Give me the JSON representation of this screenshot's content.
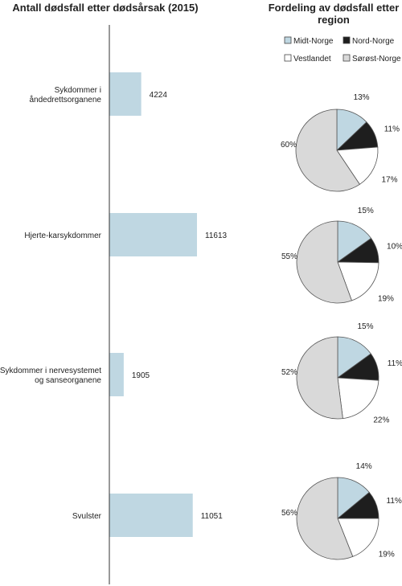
{
  "chart_data": [
    {
      "type": "bar",
      "orientation": "horizontal",
      "title": "Antall dødsfall etter dødsårsak (2015)",
      "categories": [
        [
          "Sykdommer i",
          "åndedrettsorganene"
        ],
        [
          "Hjerte-karsykdommer"
        ],
        [
          "Sykdommer i nervesystemet",
          "og sanseorganene"
        ],
        [
          "Svulster"
        ]
      ],
      "values": [
        4224,
        11613,
        1905,
        11051
      ],
      "value_labels": [
        "4224",
        "11613",
        "1905",
        "11051"
      ],
      "xlim": [
        0,
        12000
      ],
      "bar_color": "#bfd7e2",
      "grid": false
    },
    {
      "type": "pie",
      "title": "Fordeling av dødsfall etter region",
      "legend": {
        "placement": "top",
        "entries": [
          "Midt-Norge",
          "Nord-Norge",
          "Vestlandet",
          "Sørøst-Norge"
        ]
      },
      "colors": [
        "#bfd7e2",
        "#1e1e1e",
        "#ffffff",
        "#d9d9d9"
      ],
      "pies": [
        {
          "values": [
            13,
            11,
            17,
            60
          ],
          "labels": [
            "13%",
            "11%",
            "17%",
            "60%"
          ]
        },
        {
          "values": [
            15,
            10,
            19,
            55
          ],
          "labels": [
            "15%",
            "10%",
            "19%",
            "55%"
          ]
        },
        {
          "values": [
            15,
            11,
            22,
            52
          ],
          "labels": [
            "15%",
            "11%",
            "22%",
            "52%"
          ]
        },
        {
          "values": [
            14,
            11,
            19,
            56
          ],
          "labels": [
            "14%",
            "11%",
            "19%",
            "56%"
          ]
        }
      ]
    }
  ]
}
